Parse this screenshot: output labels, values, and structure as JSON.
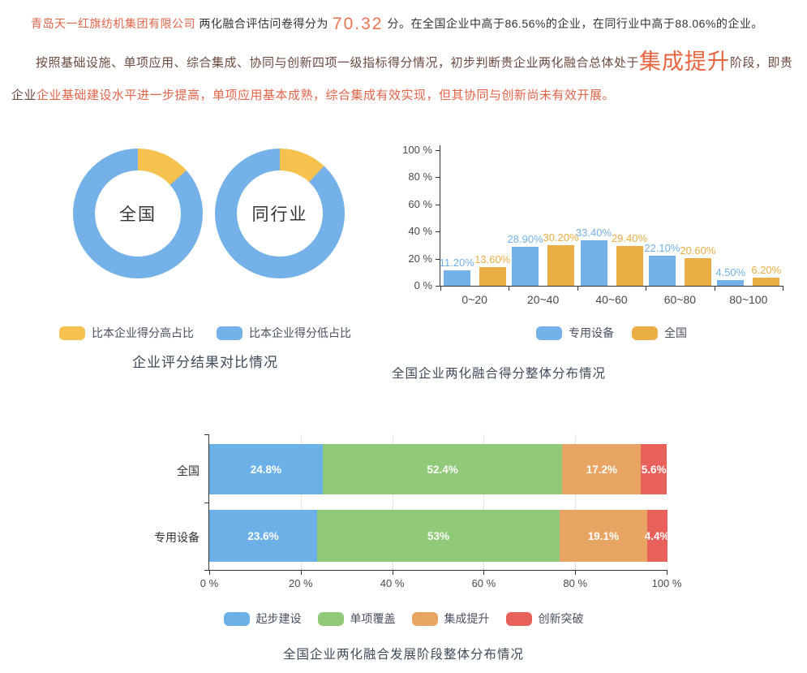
{
  "header": {
    "company": "青岛天一红旗纺机集团有限公司",
    "before_score": "两化融合评估问卷得分为",
    "score": "70.32",
    "score_unit": "分。",
    "after_score": "在全国企业中高于86.56%的企业，在同行业中高于88.06%的企业。"
  },
  "assessment": {
    "lead": "按照基础设施、单项应用、综合集成、协同与创新四项一级指标得分情况，初步判断贵企业两化融合总体处于",
    "stage": "集成提升",
    "mid": "阶段，即贵企业",
    "detail": "企业基础建设水平进一步提高，单项应用基本成熟，综合集成有效实现，但其协同与创新尚未有效开展。"
  },
  "colors": {
    "accent_red": "#E2654A",
    "score_orange": "#ED7550",
    "stage_orange": "#E8643F",
    "paragraph_maroon": "#6C4A41",
    "title_navy": "#3E4A59",
    "axis": "#333333"
  },
  "chart_data": [
    {
      "type": "pie",
      "variant": "donut-pair",
      "title": "企业评分结果对比情况",
      "legend": [
        {
          "label": "比本企业得分高占比",
          "color": "#F6C24F"
        },
        {
          "label": "比本企业得分低占比",
          "color": "#73B1E8"
        }
      ],
      "donuts": [
        {
          "label": "全国",
          "higher_pct": 13.44,
          "lower_pct": 86.56
        },
        {
          "label": "同行业",
          "higher_pct": 11.94,
          "lower_pct": 88.06
        }
      ]
    },
    {
      "type": "bar",
      "title": "全国企业两化融合得分整体分布情况",
      "categories": [
        "0~20",
        "20~40",
        "40~60",
        "60~80",
        "80~100"
      ],
      "series": [
        {
          "name": "专用设备",
          "color": "#73B1E8",
          "values": [
            11.2,
            28.9,
            33.4,
            22.1,
            4.5
          ],
          "labels": [
            "11.20%",
            "28.90%",
            "33.40%",
            "22.10%",
            "4.50%"
          ]
        },
        {
          "name": "全国",
          "color": "#EAAE44",
          "values": [
            13.6,
            30.2,
            29.4,
            20.6,
            6.2
          ],
          "labels": [
            "13.60%",
            "30.20%",
            "29.40%",
            "20.60%",
            "6.20%"
          ]
        }
      ],
      "y_ticks": [
        "0 %",
        "20 %",
        "40 %",
        "60 %",
        "80 %",
        "100 %"
      ],
      "ylim": [
        0,
        100
      ],
      "grid": false,
      "legend_position": "bottom"
    },
    {
      "type": "bar",
      "variant": "horizontal-stacked",
      "title": "全国企业两化融合发展阶段整体分布情况",
      "segments": [
        "起步建设",
        "单项覆盖",
        "集成提升",
        "创新突破"
      ],
      "segment_colors": [
        "#6CB0E8",
        "#90C978",
        "#E8A463",
        "#E8615A"
      ],
      "rows": [
        {
          "label": "全国",
          "values": [
            24.8,
            52.4,
            17.2,
            5.6
          ],
          "labels": [
            "24.8%",
            "52.4%",
            "17.2%",
            "5.6%"
          ]
        },
        {
          "label": "专用设备",
          "values": [
            23.6,
            53,
            19.1,
            4.4
          ],
          "labels": [
            "23.6%",
            "53%",
            "19.1%",
            "4.4%"
          ]
        }
      ],
      "x_ticks": [
        "0 %",
        "20 %",
        "40 %",
        "60 %",
        "80 %",
        "100 %"
      ],
      "xlim": [
        0,
        100
      ],
      "grid": true,
      "legend_position": "bottom"
    }
  ]
}
